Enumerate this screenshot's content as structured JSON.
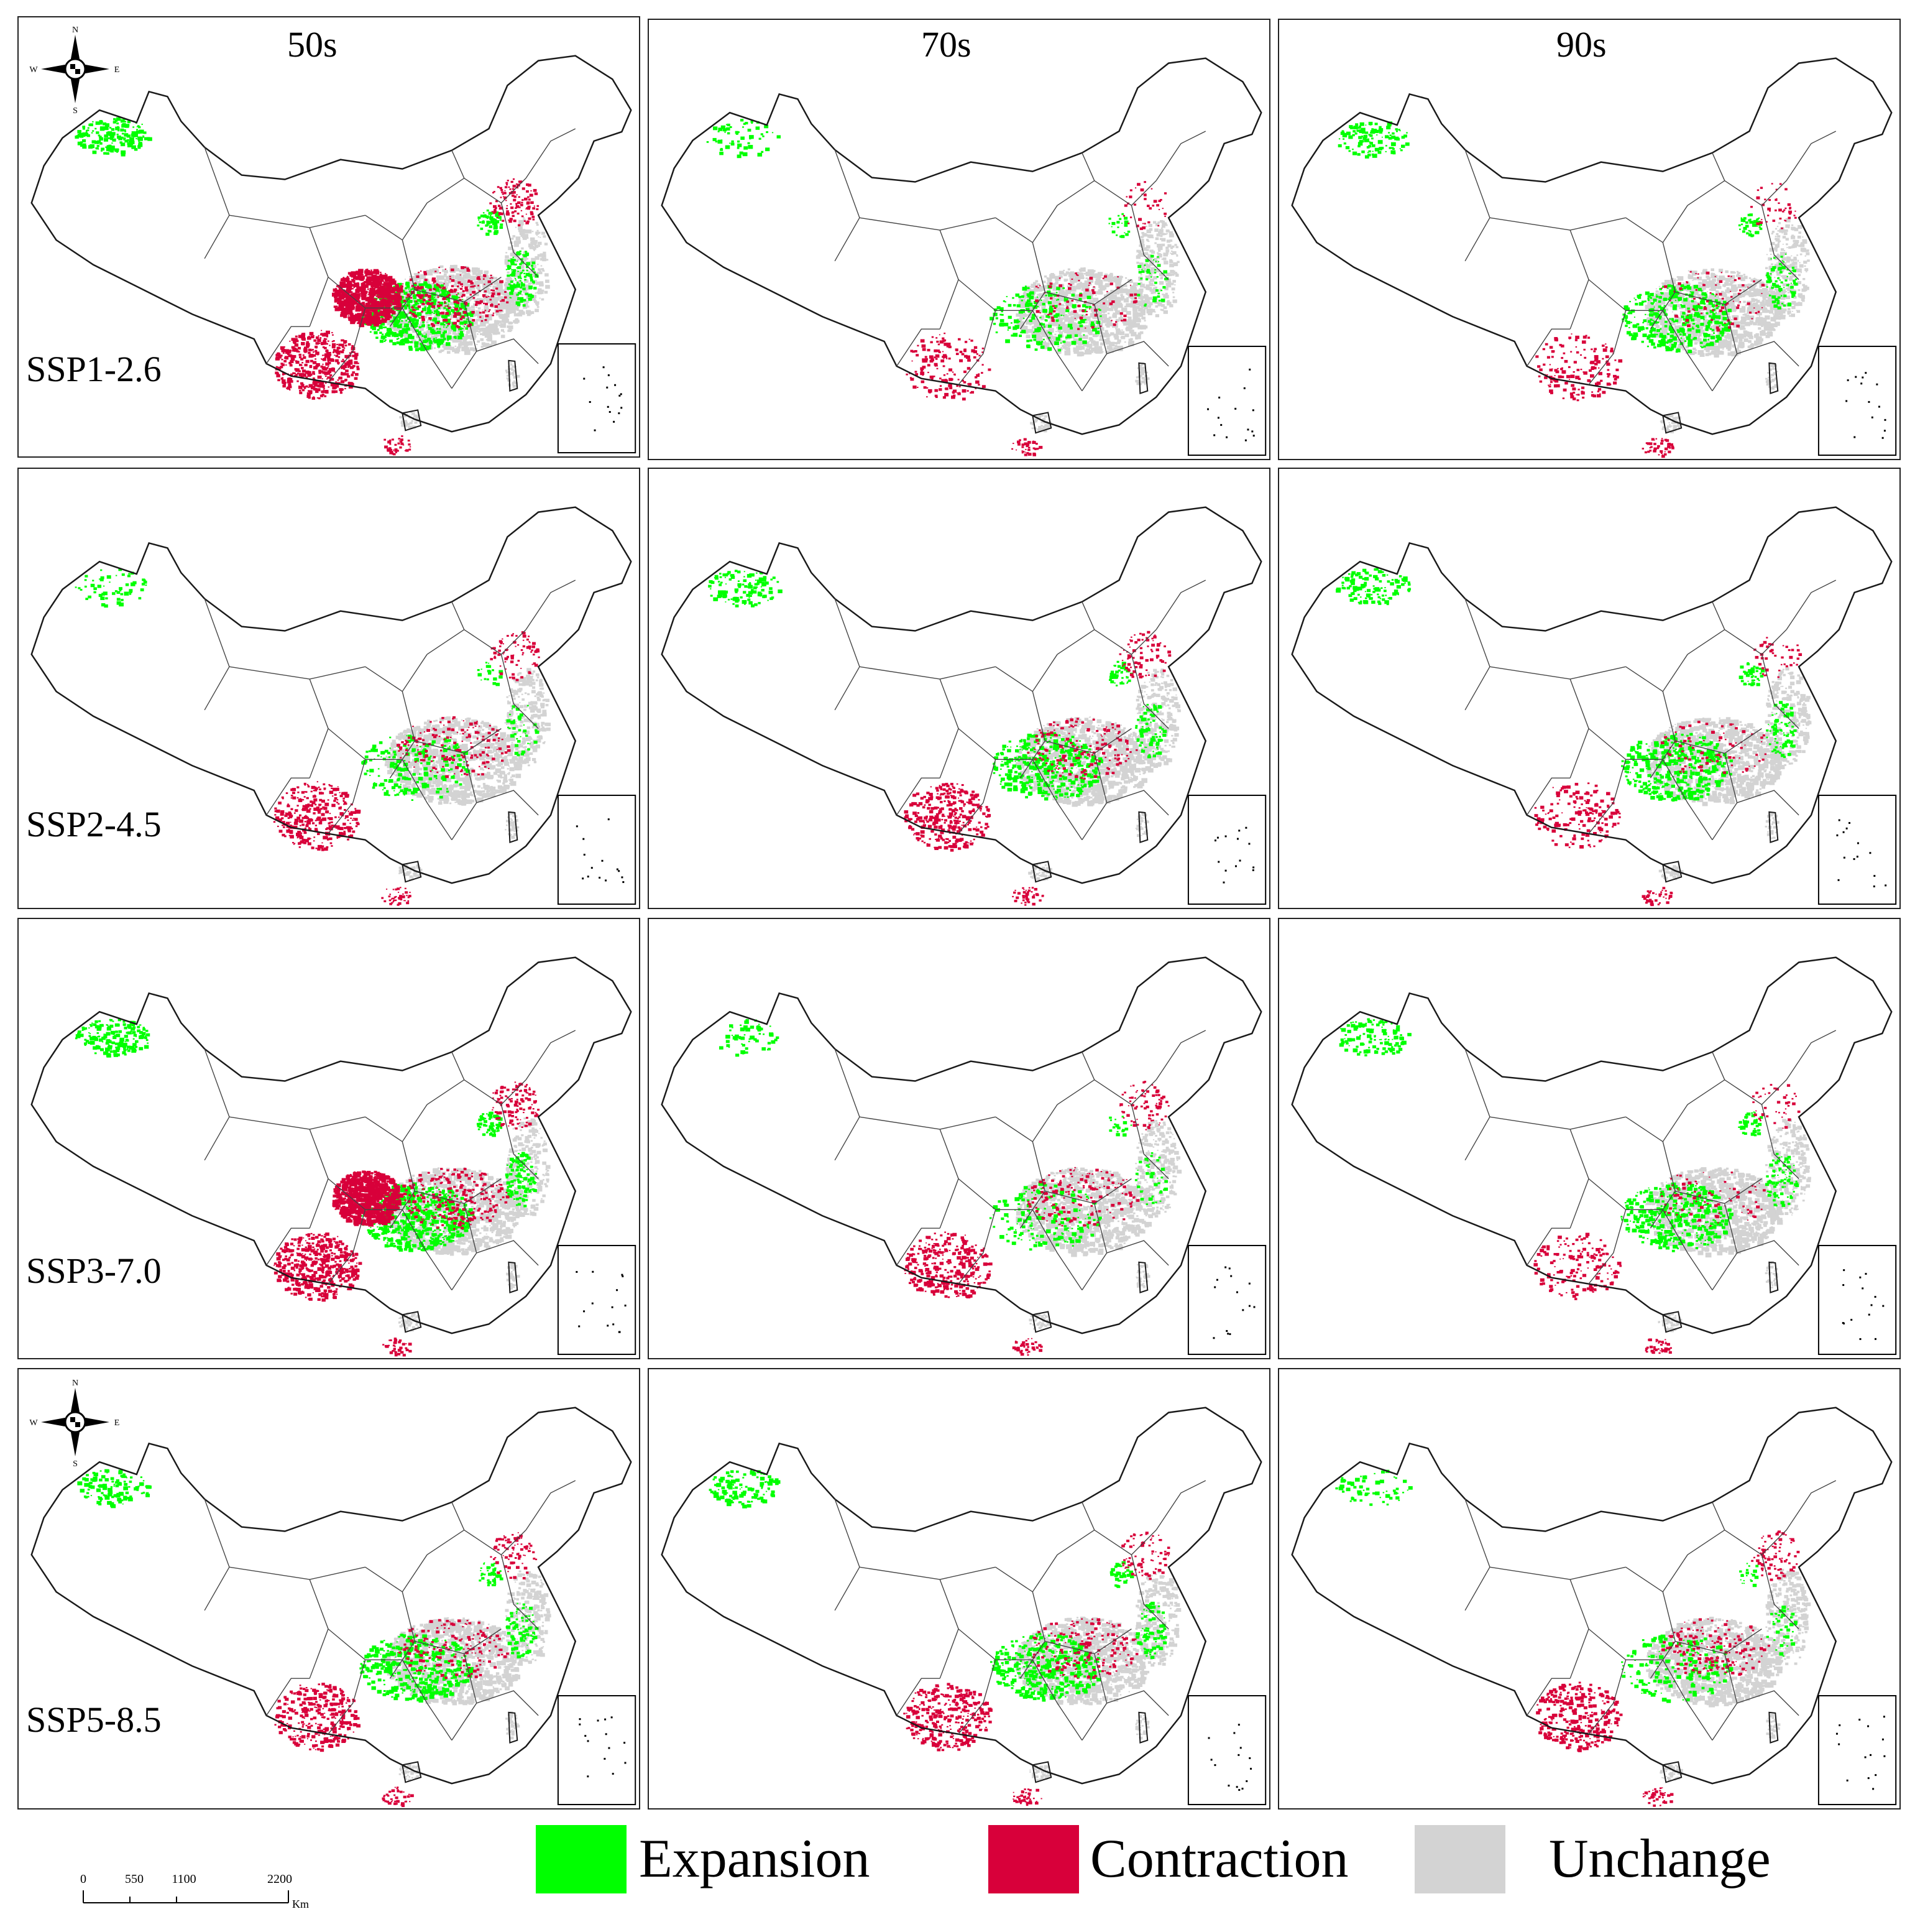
{
  "columns": [
    {
      "label": "50s"
    },
    {
      "label": "70s"
    },
    {
      "label": "90s"
    }
  ],
  "rows": [
    {
      "label": "SSP1-2.6"
    },
    {
      "label": "SSP2-4.5"
    },
    {
      "label": "SSP3-7.0"
    },
    {
      "label": "SSP5-8.5"
    }
  ],
  "compass": {
    "n": "N",
    "s": "S",
    "e": "E",
    "w": "W"
  },
  "scale_bar": {
    "ticks": [
      "0",
      "550",
      "1100",
      "2200"
    ],
    "unit": "Km"
  },
  "legend": [
    {
      "label": "Expansion",
      "color": "#00ff00"
    },
    {
      "label": "Contraction",
      "color": "#d8003a"
    },
    {
      "label": "Unchange",
      "color": "#d3d3d3"
    }
  ],
  "colors": {
    "outline": "#1a1a1a",
    "expansion": "#00ff00",
    "contraction": "#d8003a",
    "unchange": "#d3d3d3"
  },
  "panel_intensity": [
    [
      {
        "exp": 3,
        "con": 3
      },
      {
        "exp": 1,
        "con": 1
      },
      {
        "exp": 2,
        "con": 1
      }
    ],
    [
      {
        "exp": 1,
        "con": 2
      },
      {
        "exp": 2,
        "con": 2
      },
      {
        "exp": 2,
        "con": 1
      }
    ],
    [
      {
        "exp": 3,
        "con": 3
      },
      {
        "exp": 1,
        "con": 2
      },
      {
        "exp": 2,
        "con": 1
      }
    ],
    [
      {
        "exp": 2,
        "con": 2
      },
      {
        "exp": 2,
        "con": 2
      },
      {
        "exp": 1,
        "con": 2
      }
    ]
  ]
}
